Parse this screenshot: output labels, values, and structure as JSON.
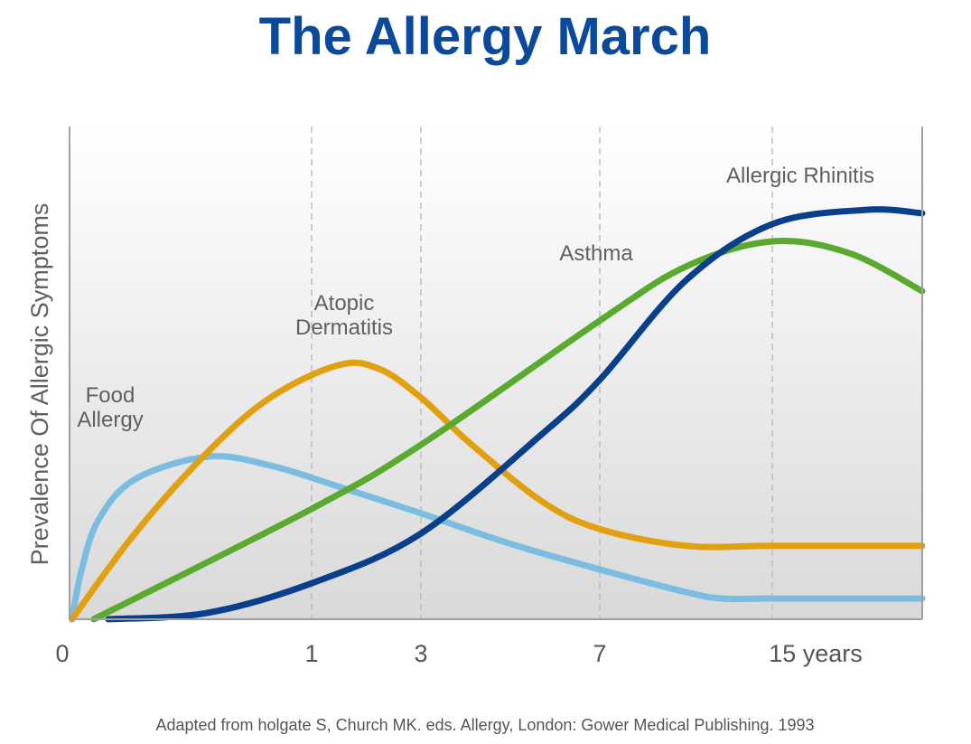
{
  "chart_data": {
    "type": "line",
    "title": "The Allergy March",
    "y_label": "Prevalence Of Allergic Symptoms",
    "source": "Adapted from holgate S, Church MK. eds. Allergy, London: Gower Medical Publishing. 1993",
    "xlim": [
      0,
      22
    ],
    "xticks": [
      0,
      1,
      3,
      7,
      {
        "value": 15,
        "label": "15 years"
      }
    ],
    "ylim": [
      0,
      100
    ],
    "grid": true,
    "series": [
      {
        "name": "Food Allergy",
        "color": "#7bbde0",
        "x": [
          0.01,
          0.05,
          0.12,
          0.27,
          0.57,
          0.83,
          1.58,
          3,
          4.9,
          7,
          11,
          12.7,
          15,
          22
        ],
        "values": [
          0,
          10.1,
          20.2,
          28.4,
          33,
          31.2,
          26.6,
          21.5,
          15.6,
          10.1,
          5.5,
          4.2,
          4.2,
          4.2
        ]
      },
      {
        "name": "Atopic Dermatitis",
        "color": "#e0a010",
        "x": [
          0.01,
          0.27,
          0.57,
          0.83,
          1.5,
          2.24,
          3,
          4.09,
          5.71,
          7,
          11,
          15,
          22
        ],
        "values": [
          0,
          17.4,
          33.9,
          45,
          51.6,
          50.8,
          45,
          35.8,
          23.9,
          18.3,
          14.9,
          14.9,
          14.9
        ]
      },
      {
        "name": "Asthma",
        "color": "#5aaa30",
        "x": [
          0.1,
          1,
          3,
          7,
          11,
          15,
          18.6,
          22
        ],
        "values": [
          0,
          22.4,
          35.4,
          60.6,
          71.6,
          76.7,
          74.3,
          66.6
        ]
      },
      {
        "name": "Allergic Rhinitis",
        "color": "#0a3f8c",
        "x": [
          0.16,
          0.57,
          1,
          3,
          5.71,
          7,
          11,
          15,
          19.4,
          22
        ],
        "values": [
          0,
          1.3,
          7.3,
          17.4,
          37.6,
          48.6,
          68.8,
          80.2,
          83.1,
          82.4
        ]
      }
    ]
  }
}
